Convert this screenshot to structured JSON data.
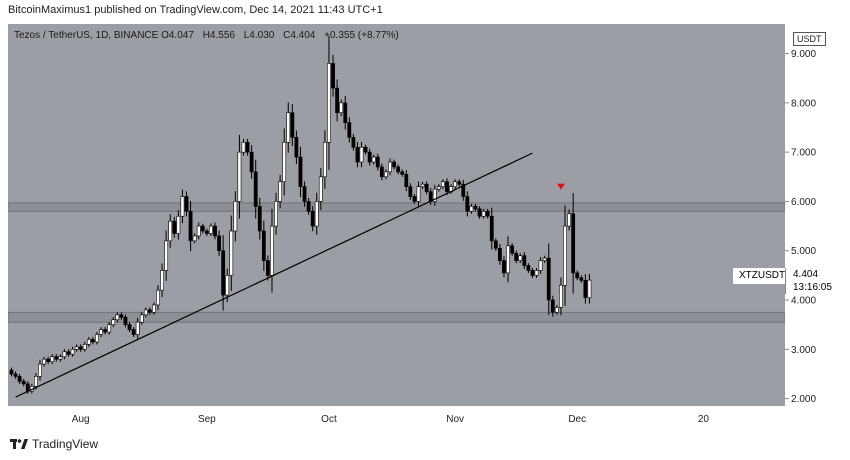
{
  "header_text": "BitcoinMaximus1 published on TradingView.com, Dec 14, 2021 11:43 UTC+1",
  "symbol": {
    "title": "Tezos / TetherUS, 1D, BINANCE",
    "o_label": "O",
    "o_value": "4.047",
    "h_label": "H",
    "h_value": "4.556",
    "l_label": "L",
    "l_value": "4.030",
    "c_label": "C",
    "c_value": "4.404",
    "change": "+0.355 (+8.77%)"
  },
  "currency_button": "USDT",
  "price_tag": {
    "label": "XTZUSDT",
    "price": "4.404",
    "countdown": "13:16:05"
  },
  "footer_logo": "TradingView",
  "colors": {
    "background": "#9b9ea4",
    "up": "#ffffff",
    "down": "#000000",
    "zone": "#8d9097",
    "marker": "#e01010"
  },
  "chart_data": {
    "type": "candlestick",
    "interval": "1D",
    "ylim": [
      1.85,
      9.6
    ],
    "y_ticks": [
      "2.000",
      "3.000",
      "4.000",
      "5.000",
      "6.000",
      "7.000",
      "8.000",
      "9.000"
    ],
    "y_tick_values": [
      2,
      3,
      4,
      5,
      6,
      7,
      8,
      9
    ],
    "x_ticks": [
      {
        "label": "Aug",
        "index": 17
      },
      {
        "label": "Sep",
        "index": 48
      },
      {
        "label": "Oct",
        "index": 78
      },
      {
        "label": "Nov",
        "index": 109
      },
      {
        "label": "Dec",
        "index": 139
      },
      {
        "label": "20",
        "index": 170
      }
    ],
    "n_slots": 173,
    "first_index": 0,
    "closes": [
      2.5,
      2.45,
      2.35,
      2.3,
      2.15,
      2.25,
      2.45,
      2.7,
      2.8,
      2.75,
      2.85,
      2.8,
      2.85,
      2.95,
      2.9,
      3.0,
      3.05,
      3.0,
      3.1,
      3.2,
      3.15,
      3.3,
      3.4,
      3.35,
      3.5,
      3.6,
      3.7,
      3.65,
      3.5,
      3.4,
      3.3,
      3.55,
      3.7,
      3.8,
      3.75,
      3.9,
      4.2,
      4.6,
      5.2,
      5.6,
      5.35,
      5.7,
      6.1,
      5.8,
      5.2,
      5.3,
      5.5,
      5.4,
      5.35,
      5.5,
      5.3,
      5.0,
      4.1,
      4.5,
      5.4,
      6.0,
      7.0,
      7.2,
      7.0,
      6.6,
      5.9,
      5.4,
      4.8,
      4.5,
      5.5,
      6.0,
      6.4,
      7.2,
      7.8,
      7.3,
      6.9,
      6.3,
      6.0,
      5.8,
      5.5,
      6.0,
      6.5,
      7.2,
      8.8,
      8.3,
      7.8,
      8.0,
      7.6,
      7.3,
      7.1,
      6.8,
      7.1,
      7.0,
      6.8,
      6.9,
      6.7,
      6.5,
      6.6,
      6.8,
      6.7,
      6.6,
      6.55,
      6.3,
      6.1,
      6.0,
      6.3,
      6.35,
      6.2,
      6.0,
      6.25,
      6.3,
      6.4,
      6.2,
      6.3,
      6.4,
      6.35,
      6.1,
      5.8,
      5.9,
      5.85,
      5.7,
      5.8,
      5.7,
      5.2,
      5.05,
      4.8,
      4.55,
      5.1,
      4.95,
      4.8,
      4.9,
      4.7,
      4.6,
      4.5,
      4.6,
      4.8,
      4.85,
      4.0,
      3.75,
      3.85,
      4.3,
      5.5,
      5.75,
      4.55,
      4.45,
      4.4,
      4.05,
      4.404
    ],
    "ohlc_note": "open of each candle equals the previous close; wicks extend beyond the body",
    "trendline": {
      "from": {
        "index": 1,
        "price": 2.03
      },
      "to": {
        "index": 128,
        "price": 6.98
      }
    },
    "support_zone": [
      3.55,
      3.75
    ],
    "resistance_zone": [
      5.8,
      5.97
    ],
    "marker": {
      "index": 135,
      "price": 6.28,
      "shape": "down-triangle"
    },
    "current_price": 4.404
  }
}
